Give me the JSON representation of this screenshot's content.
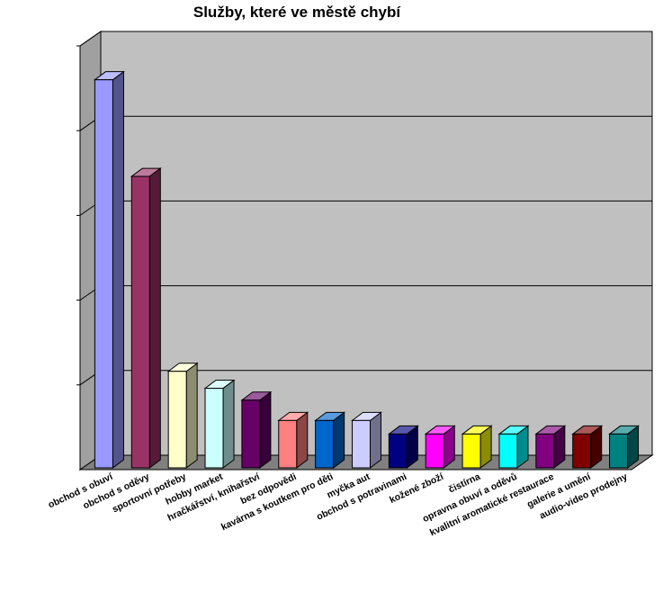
{
  "chart_data": {
    "type": "bar",
    "title": "Služby, které ve městě chybí",
    "xlabel": "",
    "ylabel": "",
    "ylim": [
      0,
      25
    ],
    "y_tick_step": 5,
    "grid": true,
    "legend": "none",
    "categories": [
      "obchod s obuví",
      "obchod s oděvy",
      "sportovní potřeby",
      "hobby market",
      "hračkářství, knihařství",
      "bez odpovědi",
      "kavárna s koutkem pro děti",
      "myčka aut",
      "obchod s potravinami",
      "kožené zboží",
      "čistírna",
      "opravna obuví a oděvů",
      "kvalitní aromatické restaurace",
      "galerie a umění",
      "audio-video prodejny"
    ],
    "values": [
      23,
      17.3,
      5.8,
      4.8,
      4.1,
      2.9,
      2.9,
      2.9,
      2.1,
      2.1,
      2.1,
      2.1,
      2.1,
      2.1,
      2.1
    ],
    "colors": [
      "#9999ff",
      "#993366",
      "#ffffcc",
      "#ccffff",
      "#660066",
      "#ff8080",
      "#0066cc",
      "#ccccff",
      "#000080",
      "#ff00ff",
      "#ffff00",
      "#00ffff",
      "#800080",
      "#800000",
      "#008080"
    ]
  }
}
